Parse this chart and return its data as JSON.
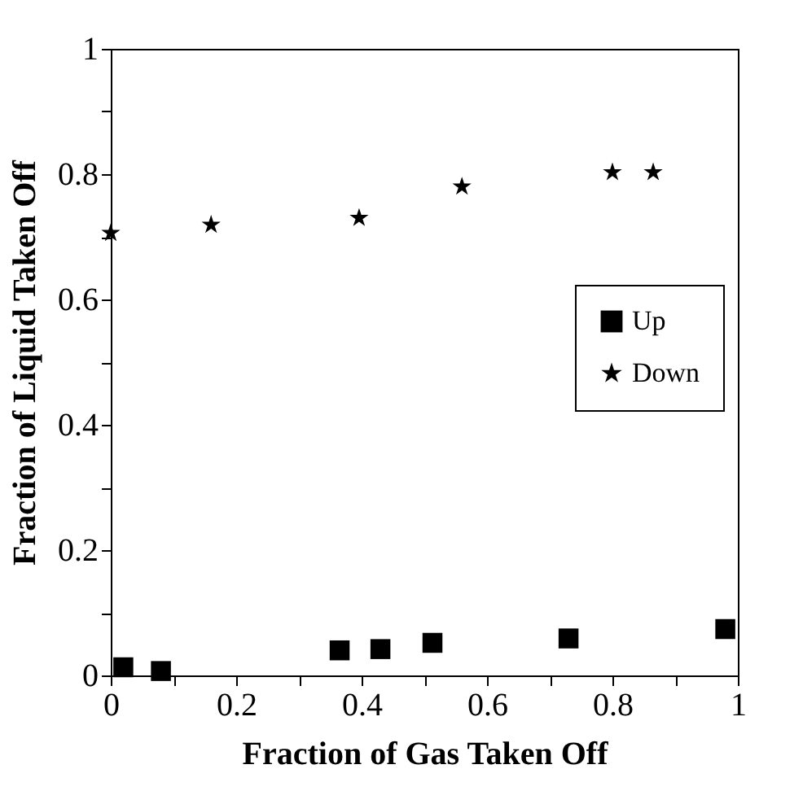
{
  "chart_data": {
    "type": "scatter",
    "xlabel": "Fraction of Gas Taken Off",
    "ylabel": "Fraction of Liquid Taken Off",
    "xlim": [
      0,
      1
    ],
    "ylim": [
      0,
      1
    ],
    "xticks": [
      0,
      {
        "value": 0.1,
        "label": null
      },
      0.2,
      {
        "value": 0.3,
        "label": null
      },
      0.4,
      {
        "value": 0.5,
        "label": null
      },
      0.6,
      {
        "value": 0.7,
        "label": null
      },
      0.8,
      {
        "value": 0.9,
        "label": null
      },
      1
    ],
    "yticks": [
      0,
      {
        "value": 0.1,
        "label": null
      },
      0.2,
      {
        "value": 0.3,
        "label": null
      },
      0.4,
      {
        "value": 0.5,
        "label": null
      },
      0.6,
      {
        "value": 0.7,
        "label": null
      },
      0.8,
      {
        "value": 0.9,
        "label": null
      },
      1
    ],
    "grid": false,
    "legend": "right",
    "series": [
      {
        "name": "Up",
        "color": "#000000",
        "marker": "square",
        "x": [
          0.02,
          0.08,
          0.365,
          0.43,
          0.513,
          0.73,
          0.98
        ],
        "values": [
          0.013,
          0.007,
          0.04,
          0.042,
          0.052,
          0.059,
          0.074
        ]
      },
      {
        "name": "Down",
        "color": "#000000",
        "marker": "star",
        "x": [
          0,
          0.16,
          0.396,
          0.56,
          0.8,
          0.865
        ],
        "values": [
          0.706,
          0.719,
          0.73,
          0.78,
          0.803,
          0.803
        ]
      }
    ]
  }
}
